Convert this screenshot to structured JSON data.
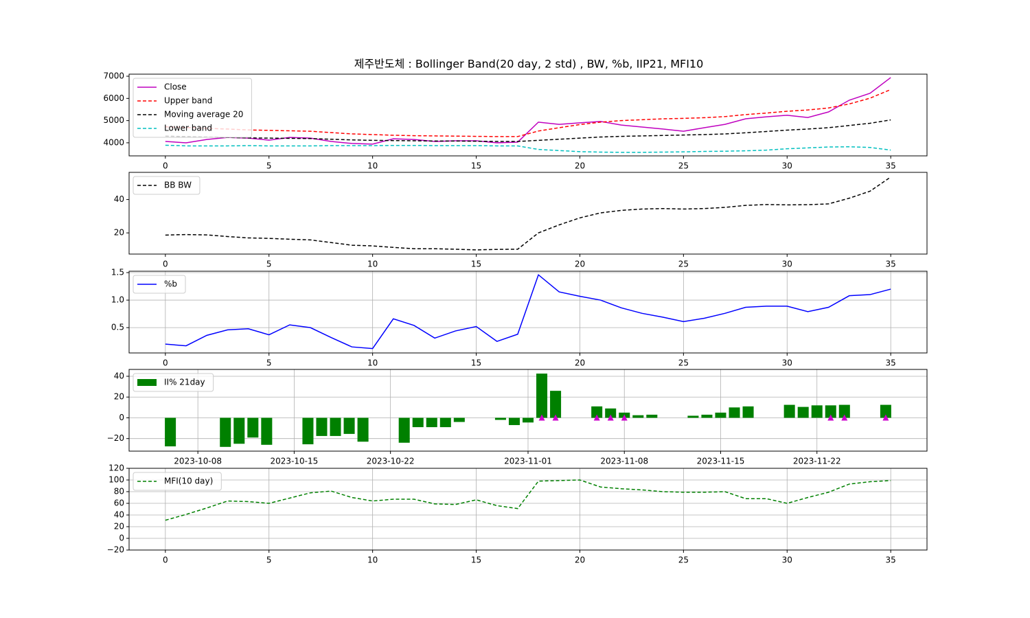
{
  "title": "제주반도체 : Bollinger Band(20 day, 2 std) , BW, %b, IIP21, MFI10",
  "chart_data": [
    {
      "type": "line",
      "x": [
        0,
        1,
        2,
        3,
        4,
        5,
        6,
        7,
        8,
        9,
        10,
        11,
        12,
        13,
        14,
        15,
        16,
        17,
        18,
        19,
        20,
        21,
        22,
        23,
        24,
        25,
        26,
        27,
        28,
        29,
        30,
        31,
        32,
        33,
        34,
        35
      ],
      "xlim": [
        -1.75,
        36.75
      ],
      "xticks": [
        0,
        5,
        10,
        15,
        20,
        25,
        30,
        35
      ],
      "ylim": [
        3410,
        7093
      ],
      "yticks": [
        4000,
        5000,
        6000,
        7000
      ],
      "grid": false,
      "legend": "upper left",
      "series": [
        {
          "name": "Close",
          "color": "#bf00bf",
          "dash": false,
          "values": [
            4060,
            4000,
            4150,
            4240,
            4210,
            4120,
            4240,
            4210,
            4060,
            3970,
            3940,
            4180,
            4150,
            4060,
            4090,
            4090,
            4000,
            4030,
            4930,
            4830,
            4900,
            4960,
            4800,
            4710,
            4620,
            4520,
            4680,
            4830,
            5080,
            5170,
            5240,
            5140,
            5390,
            5920,
            6230,
            6940
          ]
        },
        {
          "name": "Upper band",
          "color": "#ff0000",
          "dash": true,
          "values": [
            4720,
            4690,
            4650,
            4620,
            4580,
            4560,
            4540,
            4520,
            4460,
            4400,
            4370,
            4340,
            4320,
            4310,
            4300,
            4290,
            4280,
            4280,
            4530,
            4680,
            4820,
            4930,
            5000,
            5040,
            5080,
            5100,
            5130,
            5180,
            5270,
            5340,
            5420,
            5480,
            5570,
            5750,
            6010,
            6400
          ]
        },
        {
          "name": "Moving average 20",
          "color": "#000000",
          "dash": true,
          "values": [
            4300,
            4280,
            4260,
            4240,
            4220,
            4210,
            4200,
            4190,
            4160,
            4130,
            4110,
            4100,
            4090,
            4080,
            4080,
            4070,
            4060,
            4060,
            4110,
            4160,
            4210,
            4260,
            4290,
            4310,
            4330,
            4350,
            4370,
            4400,
            4450,
            4510,
            4570,
            4620,
            4680,
            4780,
            4880,
            5030
          ]
        },
        {
          "name": "Lower band",
          "color": "#00bfbf",
          "dash": true,
          "values": [
            3890,
            3860,
            3860,
            3860,
            3870,
            3860,
            3860,
            3860,
            3870,
            3870,
            3870,
            3880,
            3880,
            3870,
            3870,
            3870,
            3860,
            3860,
            3700,
            3650,
            3600,
            3580,
            3570,
            3570,
            3580,
            3590,
            3610,
            3620,
            3640,
            3670,
            3730,
            3770,
            3810,
            3820,
            3790,
            3670
          ]
        }
      ]
    },
    {
      "type": "line",
      "x": [
        0,
        1,
        2,
        3,
        4,
        5,
        6,
        7,
        8,
        9,
        10,
        11,
        12,
        13,
        14,
        15,
        16,
        17,
        18,
        19,
        20,
        21,
        22,
        23,
        24,
        25,
        26,
        27,
        28,
        29,
        30,
        31,
        32,
        33,
        34,
        35
      ],
      "xlim": [
        -1.75,
        36.75
      ],
      "xticks": [
        0,
        5,
        10,
        15,
        20,
        25,
        30,
        35
      ],
      "ylim": [
        7.3,
        56.3
      ],
      "yticks": [
        20,
        40
      ],
      "grid": false,
      "legend": "upper left",
      "series": [
        {
          "name": "BB BW",
          "color": "#000000",
          "dash": true,
          "values": [
            18.7,
            19,
            18.8,
            17.8,
            17,
            16.7,
            16.2,
            15.8,
            14.2,
            12.6,
            12.2,
            11.3,
            10.5,
            10.5,
            10.2,
            9.8,
            10.1,
            10.2,
            20,
            24.8,
            29,
            32,
            33.5,
            34.3,
            34.6,
            34.3,
            34.6,
            35.3,
            36.5,
            37,
            36.8,
            36.9,
            37.4,
            40.8,
            45,
            53.5
          ]
        }
      ]
    },
    {
      "type": "line",
      "x": [
        0,
        1,
        2,
        3,
        4,
        5,
        6,
        7,
        8,
        9,
        10,
        11,
        12,
        13,
        14,
        15,
        16,
        17,
        18,
        19,
        20,
        21,
        22,
        23,
        24,
        25,
        26,
        27,
        28,
        29,
        30,
        31,
        32,
        33,
        34,
        35
      ],
      "xlim": [
        -1.75,
        36.75
      ],
      "xticks": [
        0,
        5,
        10,
        15,
        20,
        25,
        30,
        35
      ],
      "ylim": [
        0.04,
        1.525
      ],
      "yticks": [
        0.5,
        {
          "value": 1,
          "label": "1.0"
        },
        1.5
      ],
      "grid": true,
      "legend": "upper left",
      "series": [
        {
          "name": "%b",
          "color": "#0000ff",
          "dash": false,
          "values": [
            0.2,
            0.17,
            0.36,
            0.46,
            0.48,
            0.37,
            0.55,
            0.5,
            0.32,
            0.15,
            0.12,
            0.66,
            0.54,
            0.31,
            0.44,
            0.52,
            0.25,
            0.38,
            1.46,
            1.15,
            1.07,
            1.0,
            0.86,
            0.76,
            0.69,
            0.61,
            0.67,
            0.76,
            0.87,
            0.89,
            0.89,
            0.79,
            0.87,
            1.08,
            1.1,
            1.2
          ]
        }
      ]
    },
    {
      "type": "bar",
      "x": [
        "2023-10-06",
        "2023-10-10",
        "2023-10-11",
        "2023-10-12",
        "2023-10-13",
        "2023-10-16",
        "2023-10-17",
        "2023-10-18",
        "2023-10-19",
        "2023-10-20",
        "2023-10-23",
        "2023-10-24",
        "2023-10-25",
        "2023-10-26",
        "2023-10-27",
        "2023-10-30",
        "2023-10-31",
        "2023-11-01",
        "2023-11-02",
        "2023-11-03",
        "2023-11-06",
        "2023-11-07",
        "2023-11-08",
        "2023-11-09",
        "2023-11-10",
        "2023-11-13",
        "2023-11-14",
        "2023-11-15",
        "2023-11-16",
        "2023-11-17",
        "2023-11-20",
        "2023-11-21",
        "2023-11-22",
        "2023-11-23",
        "2023-11-24",
        "2023-11-27"
      ],
      "xlim": [
        "2023-10-03",
        "2023-11-30"
      ],
      "xticks": [
        "2023-10-08",
        "2023-10-15",
        "2023-10-22",
        "2023-11-01",
        "2023-11-08",
        "2023-11-15",
        "2023-11-22"
      ],
      "ylim": [
        -32.1,
        46.6
      ],
      "yticks": [
        {
          "value": -20,
          "label": "−20"
        },
        0,
        20,
        40
      ],
      "grid": true,
      "legend": "upper left",
      "series": [
        {
          "name": "II% 21day",
          "color": "#008000",
          "values": [
            -27.5,
            -28,
            -25,
            -19,
            -26,
            -25.5,
            -17.5,
            -17.5,
            -15.5,
            -23,
            -24,
            -9,
            -9,
            -9,
            -4,
            -2,
            -7,
            -4.5,
            42.6,
            26,
            11,
            9,
            5,
            2.5,
            3,
            2,
            3,
            5,
            10,
            11,
            12.5,
            10.5,
            12,
            12,
            12.5,
            12.5
          ]
        }
      ],
      "markers": {
        "color": "#cc00cc",
        "x": [
          "2023-11-02",
          "2023-11-03",
          "2023-11-06",
          "2023-11-07",
          "2023-11-08",
          "2023-11-23",
          "2023-11-24",
          "2023-11-27"
        ],
        "values": [
          0,
          0,
          0,
          0,
          0,
          0,
          0,
          0
        ]
      }
    },
    {
      "type": "line",
      "x": [
        0,
        1,
        2,
        3,
        4,
        5,
        6,
        7,
        8,
        9,
        10,
        11,
        12,
        13,
        14,
        15,
        16,
        17,
        18,
        19,
        20,
        21,
        22,
        23,
        24,
        25,
        26,
        27,
        28,
        29,
        30,
        31,
        32,
        33,
        34,
        35
      ],
      "xlim": [
        -1.75,
        36.75
      ],
      "xticks": [
        0,
        5,
        10,
        15,
        20,
        25,
        30,
        35
      ],
      "ylim": [
        -20,
        120
      ],
      "yticks": [
        {
          "value": -20,
          "label": "−20"
        },
        0,
        20,
        40,
        60,
        80,
        100,
        120
      ],
      "grid": true,
      "legend": "upper left",
      "series": [
        {
          "name": "MFI(10 day)",
          "color": "#008000",
          "dash": true,
          "values": [
            31,
            41,
            52,
            64,
            63,
            60,
            69,
            78,
            81,
            70,
            64,
            67,
            67,
            59,
            58,
            66,
            56,
            51,
            98,
            99,
            100,
            88,
            85,
            83,
            80,
            79,
            79,
            80,
            68,
            68,
            60,
            70,
            79,
            93,
            97,
            99
          ]
        }
      ]
    }
  ]
}
